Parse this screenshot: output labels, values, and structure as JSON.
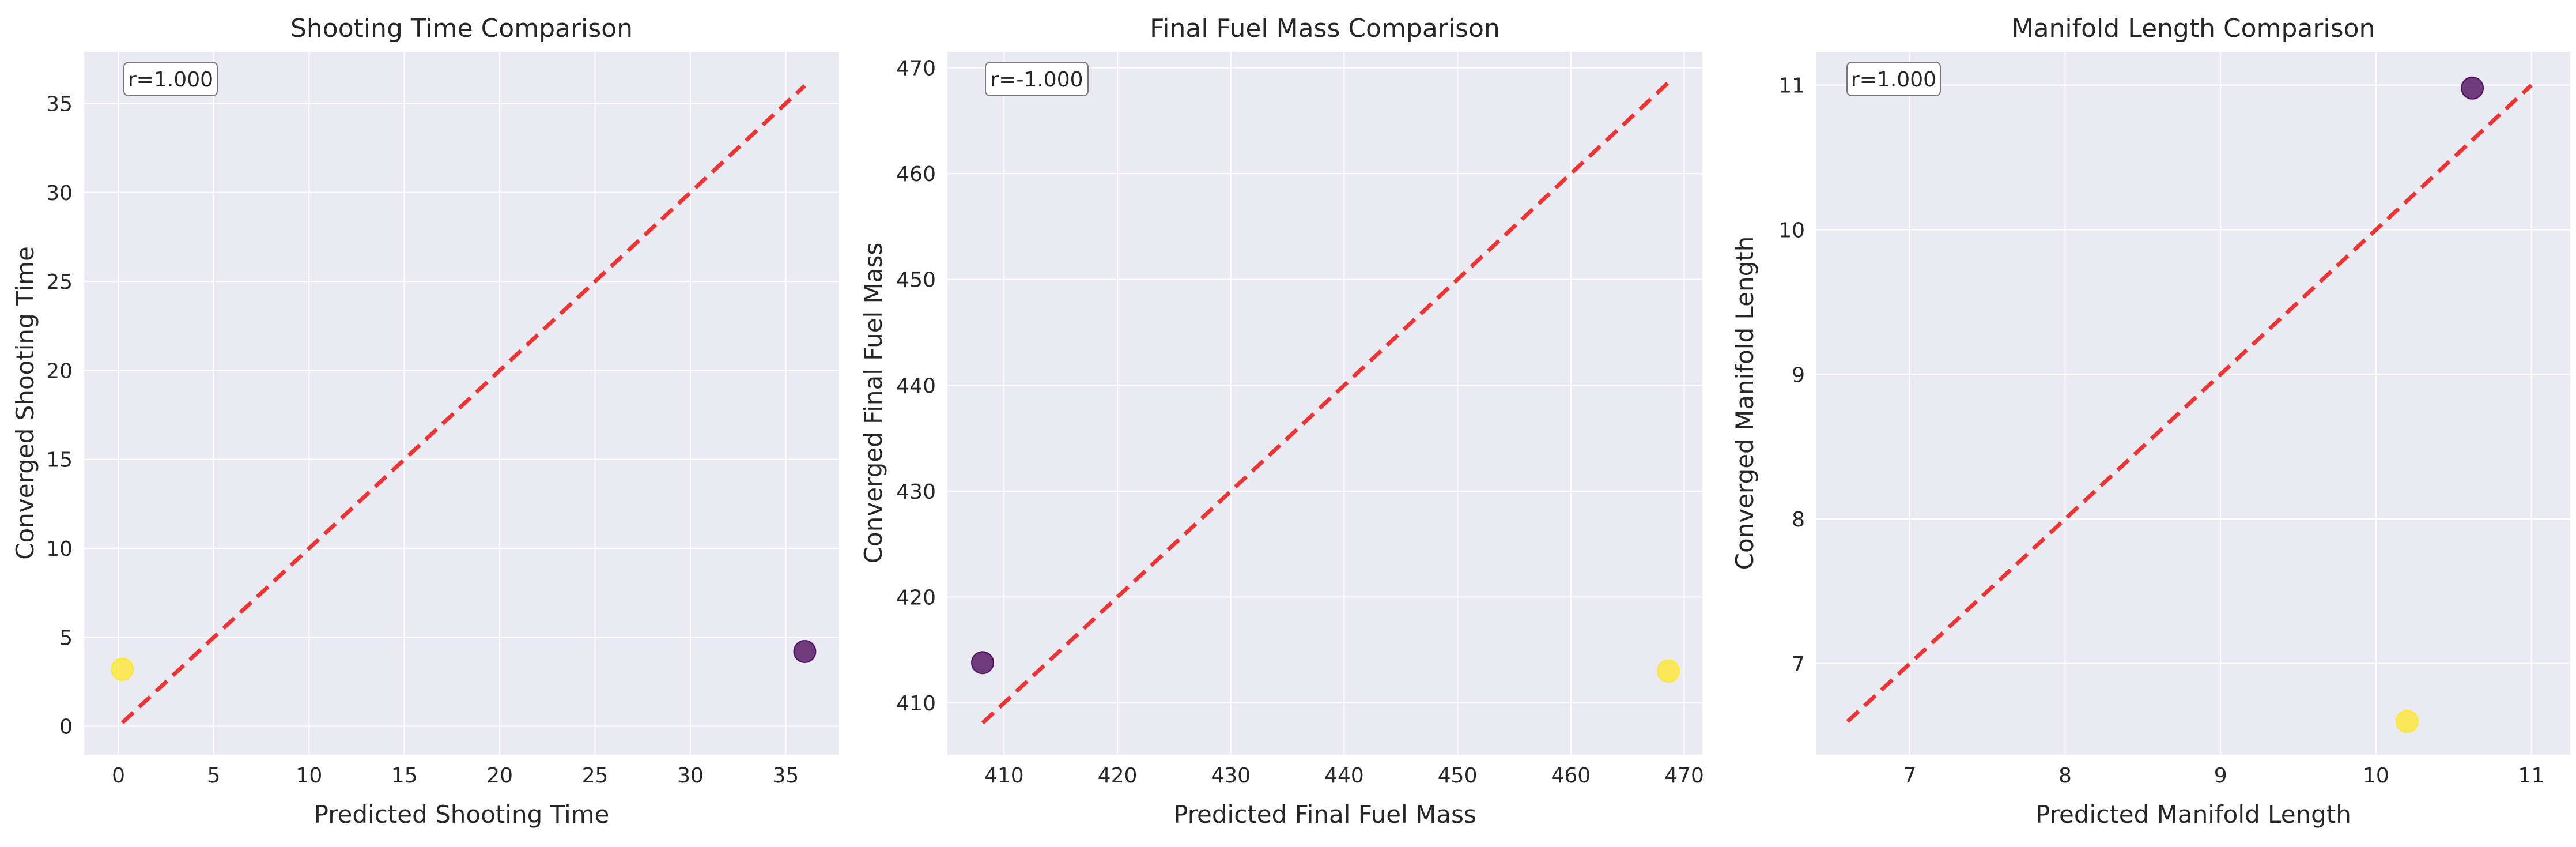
{
  "figure": {
    "background": "#ffffff",
    "plot_background": "#eaeaf2",
    "grid_color": "#ffffff",
    "identity_line_color": "#ee3333"
  },
  "chart_data": [
    {
      "type": "scatter",
      "title": "Shooting Time Comparison",
      "xlabel": "Predicted Shooting Time",
      "ylabel": "Converged Shooting Time",
      "xlim": [
        -1.8,
        37.8
      ],
      "ylim": [
        -1.6,
        37.9
      ],
      "xticks": [
        0,
        5,
        10,
        15,
        20,
        25,
        30,
        35
      ],
      "yticks": [
        0,
        5,
        10,
        15,
        20,
        25,
        30,
        35
      ],
      "annotation": "r=1.000",
      "grid": true,
      "identity_line": [
        0.2,
        36.0
      ],
      "points": [
        {
          "x": 0.2,
          "y": 3.2,
          "color": "#fde725"
        },
        {
          "x": 36.0,
          "y": 4.2,
          "color": "#440154"
        }
      ]
    },
    {
      "type": "scatter",
      "title": "Final Fuel Mass Comparison",
      "xlabel": "Predicted Final Fuel Mass",
      "ylabel": "Converged Final Fuel Mass",
      "xlim": [
        405.0,
        471.6
      ],
      "ylim": [
        405.1,
        471.5
      ],
      "xticks": [
        410,
        420,
        430,
        440,
        450,
        460,
        470
      ],
      "yticks": [
        410,
        420,
        430,
        440,
        450,
        460,
        470
      ],
      "annotation": "r=-1.000",
      "grid": true,
      "identity_line": [
        408.1,
        468.6
      ],
      "points": [
        {
          "x": 408.1,
          "y": 413.8,
          "color": "#440154"
        },
        {
          "x": 468.6,
          "y": 413.0,
          "color": "#fde725"
        }
      ]
    },
    {
      "type": "scatter",
      "title": "Manifold Length Comparison",
      "xlabel": "Predicted Manifold Length",
      "ylabel": "Converged Manifold Length",
      "xlim": [
        6.4,
        11.25
      ],
      "ylim": [
        6.37,
        11.23
      ],
      "xticks": [
        7,
        8,
        9,
        10,
        11
      ],
      "yticks": [
        7,
        8,
        9,
        10,
        11
      ],
      "annotation": "r=1.000",
      "grid": true,
      "identity_line": [
        6.6,
        11.0
      ],
      "points": [
        {
          "x": 10.62,
          "y": 10.98,
          "color": "#440154"
        },
        {
          "x": 10.2,
          "y": 6.6,
          "color": "#fde725"
        }
      ]
    }
  ]
}
